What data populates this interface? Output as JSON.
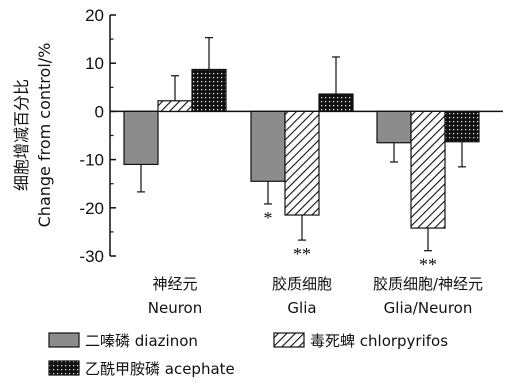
{
  "chart_data": {
    "type": "bar",
    "title": "",
    "ylabel_cn": "细胞增减百分比",
    "ylabel_en": "Change from control/%",
    "xlabel": "",
    "ylim": [
      -30,
      20
    ],
    "yticks": [
      -30,
      -20,
      -10,
      0,
      10,
      20
    ],
    "grid": false,
    "legend_placement": "bottom",
    "categories": [
      {
        "cn": "神经元",
        "en": "Neuron"
      },
      {
        "cn": "胶质细胞",
        "en": "Glia"
      },
      {
        "cn": "胶质细胞/神经元",
        "en": "Glia/Neuron"
      }
    ],
    "series": [
      {
        "name": "二嗪磷 diazinon",
        "pattern": "gray",
        "color": "#8c8c8c",
        "values": [
          -11,
          -14.5,
          -6.5
        ],
        "errors": [
          5.7,
          4.7,
          4.0
        ],
        "significance": [
          "",
          "*",
          ""
        ]
      },
      {
        "name": "毒死蜱 chlorpyrifos",
        "pattern": "hatch",
        "color": "#ffffff",
        "values": [
          2.2,
          -21.5,
          -24.2
        ],
        "errors": [
          5.2,
          5.2,
          4.7
        ],
        "significance": [
          "",
          "**",
          "**"
        ]
      },
      {
        "name": "乙酰甲胺磷 acephate",
        "pattern": "dots",
        "color": "#111111",
        "values": [
          8.7,
          3.6,
          -6.3
        ],
        "errors": [
          6.6,
          7.7,
          5.2
        ],
        "significance": [
          "",
          "",
          ""
        ]
      }
    ]
  }
}
